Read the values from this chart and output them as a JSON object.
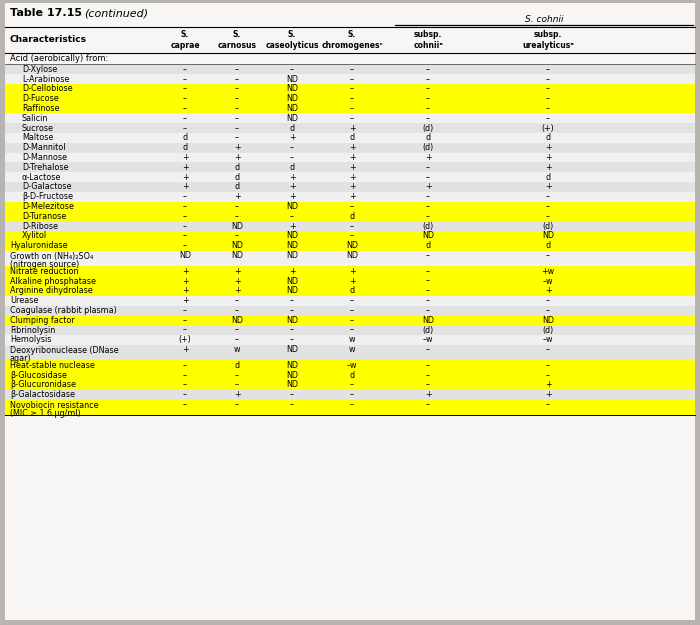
{
  "title": "Table 17.15",
  "title_cont": "(continued)",
  "super_header": "S. cohnii",
  "col_headers": [
    "Characteristics",
    "S.\ncaprae",
    "S.\ncarnosus",
    "S.\ncaseolyticus",
    "S.\nchromogenesᶜ",
    "subsp.\ncohniiᵃ",
    "subsp.\nurealyticusᵃ"
  ],
  "section_header": "Acid (aerobically) from:",
  "rows": [
    {
      "label": "D-Xylose",
      "indent": 1,
      "hl": false,
      "v": [
        "–",
        "–",
        "–",
        "–",
        "–",
        "–"
      ]
    },
    {
      "label": "L-Arabinose",
      "indent": 1,
      "hl": false,
      "v": [
        "–",
        "–",
        "ND",
        "–",
        "–",
        "–"
      ]
    },
    {
      "label": "D-Cellobiose",
      "indent": 1,
      "hl": true,
      "v": [
        "–",
        "–",
        "ND",
        "–",
        "–",
        "–"
      ]
    },
    {
      "label": "D-Fucose",
      "indent": 1,
      "hl": true,
      "v": [
        "–",
        "–",
        "ND",
        "–",
        "–",
        "–"
      ]
    },
    {
      "label": "Raffinose",
      "indent": 1,
      "hl": true,
      "v": [
        "–",
        "–",
        "ND",
        "–",
        "–",
        "–"
      ]
    },
    {
      "label": "Salicin",
      "indent": 1,
      "hl": false,
      "v": [
        "–",
        "–",
        "ND",
        "–",
        "–",
        "–"
      ]
    },
    {
      "label": "Sucrose",
      "indent": 1,
      "hl": false,
      "v": [
        "–",
        "–",
        "d",
        "+",
        "(d)",
        "(+)"
      ]
    },
    {
      "label": "Maltose",
      "indent": 1,
      "hl": false,
      "v": [
        "d",
        "–",
        "+",
        "d",
        "d",
        "d"
      ]
    },
    {
      "label": "D-Mannitol",
      "indent": 1,
      "hl": false,
      "v": [
        "d",
        "+",
        "–",
        "+",
        "(d)",
        "+"
      ]
    },
    {
      "label": "D-Mannose",
      "indent": 1,
      "hl": false,
      "v": [
        "+",
        "+",
        "–",
        "+",
        "+",
        "+"
      ]
    },
    {
      "label": "D-Trehalose",
      "indent": 1,
      "hl": false,
      "v": [
        "+",
        "d",
        "d",
        "+",
        "–",
        "+"
      ]
    },
    {
      "label": "α-Lactose",
      "indent": 1,
      "hl": false,
      "v": [
        "+",
        "d",
        "+",
        "+",
        "–",
        "d"
      ]
    },
    {
      "label": "D-Galactose",
      "indent": 1,
      "hl": false,
      "v": [
        "+",
        "d",
        "+",
        "+",
        "+",
        "+"
      ]
    },
    {
      "label": "β-D-Fructose",
      "indent": 1,
      "hl": false,
      "v": [
        "–",
        "+",
        "+",
        "+",
        "–",
        "–"
      ]
    },
    {
      "label": "D-Melezitose",
      "indent": 1,
      "hl": true,
      "v": [
        "–",
        "–",
        "ND",
        "–",
        "–",
        "–"
      ]
    },
    {
      "label": "D-Turanose",
      "indent": 1,
      "hl": true,
      "v": [
        "–",
        "–",
        "–",
        "d",
        "–",
        "–"
      ]
    },
    {
      "label": "D-Ribose",
      "indent": 1,
      "hl": false,
      "v": [
        "–",
        "ND",
        "+",
        "–",
        "(d)",
        "(d)"
      ]
    },
    {
      "label": "Xylitol",
      "indent": 1,
      "hl": true,
      "v": [
        "–",
        "–",
        "ND",
        "–",
        "ND",
        "ND"
      ]
    },
    {
      "label": "Hyaluronidase",
      "indent": 0,
      "hl": true,
      "v": [
        "–",
        "ND",
        "ND",
        "ND",
        "d",
        "d"
      ]
    },
    {
      "label": "Growth on (NH₄)₂SO₄",
      "indent": 0,
      "hl": false,
      "v": [
        "ND",
        "ND",
        "ND",
        "ND",
        "–",
        "–"
      ],
      "line2": "(nitrogen source)"
    },
    {
      "label": "Nitrate reduction",
      "indent": 0,
      "hl": true,
      "v": [
        "+",
        "+",
        "+",
        "+",
        "–",
        "+w"
      ]
    },
    {
      "label": "Alkaline phosphatase",
      "indent": 0,
      "hl": true,
      "v": [
        "+",
        "+",
        "ND",
        "+",
        "–",
        "–w"
      ]
    },
    {
      "label": "Arginine dihydrolase",
      "indent": 0,
      "hl": true,
      "v": [
        "+",
        "+",
        "ND",
        "d",
        "–",
        "+"
      ]
    },
    {
      "label": "Urease",
      "indent": 0,
      "hl": false,
      "v": [
        "+",
        "–",
        "–",
        "–",
        "–",
        "–"
      ]
    },
    {
      "label": "Coagulase (rabbit plasma)",
      "indent": 0,
      "hl": false,
      "v": [
        "–",
        "–",
        "–",
        "–",
        "–",
        "–"
      ]
    },
    {
      "label": "Clumping factor",
      "indent": 0,
      "hl": true,
      "v": [
        "–",
        "ND",
        "ND",
        "–",
        "ND",
        "ND"
      ]
    },
    {
      "label": "Fibrinolysin",
      "indent": 0,
      "hl": false,
      "v": [
        "–",
        "–",
        "–",
        "–",
        "(d)",
        "(d)"
      ]
    },
    {
      "label": "Hemolysis",
      "indent": 0,
      "hl": false,
      "v": [
        "(+)",
        "–",
        "–",
        "w",
        "–w",
        "–w"
      ]
    },
    {
      "label": "Deoxyribonuclease (DNase",
      "indent": 0,
      "hl": false,
      "v": [
        "+",
        "w",
        "ND",
        "w",
        "–",
        "–"
      ],
      "line2": "agar)"
    },
    {
      "label": "Heat-stable nuclease",
      "indent": 0,
      "hl": true,
      "v": [
        "–",
        "d",
        "ND",
        "–w",
        "–",
        "–"
      ]
    },
    {
      "label": "β-Glucosidase",
      "indent": 0,
      "hl": true,
      "v": [
        "–",
        "–",
        "ND",
        "d",
        "–",
        "–"
      ]
    },
    {
      "label": "β-Glucuronidase",
      "indent": 0,
      "hl": true,
      "v": [
        "–",
        "–",
        "ND",
        "–",
        "–",
        "+"
      ]
    },
    {
      "label": "β-Galactosidase",
      "indent": 0,
      "hl": false,
      "v": [
        "–",
        "+",
        "–",
        "–",
        "+",
        "+"
      ]
    },
    {
      "label": "Novobiocin resistance",
      "indent": 0,
      "hl": true,
      "v": [
        "–",
        "–",
        "–",
        "–",
        "–",
        "–"
      ],
      "line2": "(MIC ≥ 1.6 µg/ml)"
    }
  ],
  "hl_color": "#ffff00",
  "row_alt": [
    "#e2e2e2",
    "#f0f0f0"
  ],
  "bg_color": "#b8b4b0",
  "table_bg": "#f8f6f4"
}
